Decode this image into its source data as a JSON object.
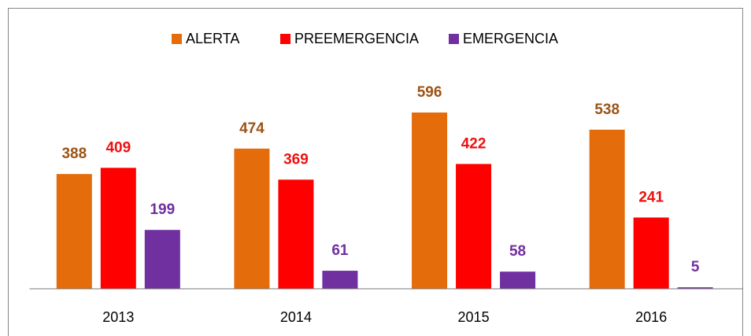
{
  "chart_data": {
    "type": "bar",
    "categories": [
      "2013",
      "2014",
      "2015",
      "2016"
    ],
    "series": [
      {
        "name": "ALERTA",
        "color": "#e46c0a",
        "label_color": "#9c5416",
        "values": [
          388,
          474,
          596,
          538
        ]
      },
      {
        "name": "PREEMERGENCIA",
        "color": "#ff0000",
        "label_color": "#ee1111",
        "values": [
          409,
          369,
          422,
          241
        ]
      },
      {
        "name": "EMERGENCIA",
        "color": "#7030a0",
        "label_color": "#7030a0",
        "values": [
          199,
          61,
          58,
          5
        ]
      }
    ],
    "legend": "top"
  }
}
